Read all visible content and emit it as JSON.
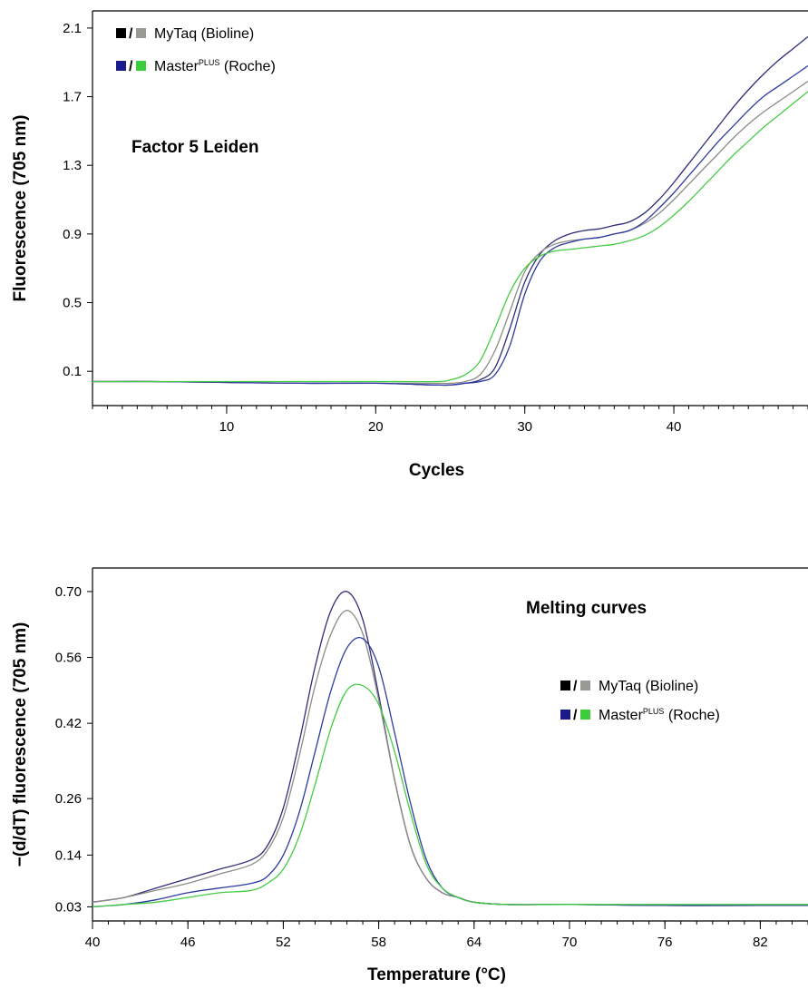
{
  "chart_data": [
    {
      "type": "line",
      "title": "Factor 5 Leiden",
      "xlabel": "Cycles",
      "ylabel": "Fluorescence (705 nm)",
      "xlim": [
        1,
        49
      ],
      "ylim": [
        -0.1,
        2.2
      ],
      "xticks": [
        10,
        20,
        30,
        40
      ],
      "yticks": [
        0.1,
        0.5,
        0.9,
        1.3,
        1.7,
        2.1
      ],
      "legend": [
        {
          "sym_a_color": "#000000",
          "sym_b_color": "#9a9a94",
          "label": "MyTaq (Bioline)",
          "sup": ""
        },
        {
          "sym_a_color": "#1a1a8a",
          "sym_b_color": "#3ccc3c",
          "label": "Master",
          "sup": "PLUS",
          "suffix": " (Roche)"
        }
      ],
      "legend_placement": "top-left",
      "series": [
        {
          "color": "#2e2e78",
          "x": [
            1,
            5,
            10,
            15,
            20,
            24,
            25,
            26,
            27,
            28,
            29,
            30,
            31,
            32,
            33,
            34,
            35,
            36,
            37,
            38,
            39,
            40,
            41,
            42,
            43,
            44,
            45,
            46,
            47,
            48,
            49
          ],
          "y": [
            0.04,
            0.04,
            0.035,
            0.03,
            0.03,
            0.02,
            0.02,
            0.03,
            0.05,
            0.12,
            0.35,
            0.62,
            0.78,
            0.86,
            0.9,
            0.92,
            0.93,
            0.95,
            0.97,
            1.02,
            1.1,
            1.2,
            1.31,
            1.42,
            1.53,
            1.64,
            1.74,
            1.83,
            1.91,
            1.98,
            2.05
          ]
        },
        {
          "color": "#8c8c86",
          "x": [
            1,
            5,
            10,
            15,
            20,
            24,
            25,
            26,
            27,
            28,
            29,
            30,
            31,
            32,
            33,
            34,
            35,
            36,
            37,
            38,
            39,
            40,
            41,
            42,
            43,
            44,
            45,
            46,
            47,
            48,
            49
          ],
          "y": [
            0.04,
            0.04,
            0.035,
            0.03,
            0.03,
            0.03,
            0.03,
            0.04,
            0.08,
            0.22,
            0.45,
            0.68,
            0.79,
            0.84,
            0.86,
            0.87,
            0.88,
            0.9,
            0.92,
            0.96,
            1.02,
            1.1,
            1.19,
            1.28,
            1.37,
            1.46,
            1.54,
            1.61,
            1.67,
            1.73,
            1.79
          ]
        },
        {
          "color": "#2e3aa0",
          "x": [
            1,
            5,
            10,
            15,
            20,
            24,
            25,
            26,
            27,
            28,
            29,
            30,
            31,
            32,
            33,
            34,
            35,
            36,
            37,
            38,
            39,
            40,
            41,
            42,
            43,
            44,
            45,
            46,
            47,
            48,
            49
          ],
          "y": [
            0.04,
            0.04,
            0.035,
            0.03,
            0.03,
            0.02,
            0.02,
            0.03,
            0.04,
            0.08,
            0.25,
            0.55,
            0.74,
            0.82,
            0.85,
            0.87,
            0.88,
            0.9,
            0.92,
            0.97,
            1.05,
            1.14,
            1.24,
            1.34,
            1.44,
            1.53,
            1.62,
            1.7,
            1.76,
            1.82,
            1.88
          ]
        },
        {
          "color": "#44cc44",
          "x": [
            1,
            5,
            10,
            15,
            20,
            24,
            25,
            26,
            27,
            28,
            29,
            30,
            31,
            32,
            33,
            34,
            35,
            36,
            37,
            38,
            39,
            40,
            41,
            42,
            43,
            44,
            45,
            46,
            47,
            48,
            49
          ],
          "y": [
            0.04,
            0.04,
            0.04,
            0.04,
            0.04,
            0.04,
            0.05,
            0.08,
            0.16,
            0.35,
            0.56,
            0.7,
            0.77,
            0.8,
            0.81,
            0.82,
            0.83,
            0.84,
            0.86,
            0.89,
            0.94,
            1.01,
            1.09,
            1.18,
            1.27,
            1.36,
            1.44,
            1.52,
            1.59,
            1.66,
            1.73
          ]
        }
      ]
    },
    {
      "type": "line",
      "title": "Melting curves",
      "xlabel": "Temperature (°C)",
      "ylabel": "−(d/dT) fluorescence (705 nm)",
      "xlim": [
        40,
        85
      ],
      "ylim": [
        0.0,
        0.75
      ],
      "xticks": [
        40,
        46,
        52,
        58,
        64,
        70,
        76,
        82
      ],
      "yticks": [
        0.03,
        0.14,
        0.26,
        0.42,
        0.56,
        0.7
      ],
      "legend": [
        {
          "sym_a_color": "#000000",
          "sym_b_color": "#9a9a94",
          "label": "MyTaq (Bioline)",
          "sup": ""
        },
        {
          "sym_a_color": "#1a1a8a",
          "sym_b_color": "#3ccc3c",
          "label": "Master",
          "sup": "PLUS",
          "suffix": " (Roche)"
        }
      ],
      "legend_placement": "right",
      "series": [
        {
          "color": "#2e2e78",
          "x": [
            40,
            42,
            44,
            46,
            48,
            50,
            51,
            52,
            53,
            54,
            55,
            56,
            57,
            58,
            59,
            60,
            61,
            62,
            63,
            64,
            66,
            70,
            76,
            82,
            85
          ],
          "y": [
            0.04,
            0.05,
            0.07,
            0.09,
            0.11,
            0.13,
            0.16,
            0.24,
            0.38,
            0.54,
            0.66,
            0.7,
            0.64,
            0.48,
            0.3,
            0.16,
            0.09,
            0.06,
            0.05,
            0.04,
            0.035,
            0.035,
            0.033,
            0.033,
            0.033
          ]
        },
        {
          "color": "#8c8c86",
          "x": [
            40,
            42,
            44,
            46,
            48,
            50,
            51,
            52,
            53,
            54,
            55,
            56,
            57,
            58,
            59,
            60,
            61,
            62,
            63,
            64,
            66,
            70,
            76,
            82,
            85
          ],
          "y": [
            0.04,
            0.05,
            0.065,
            0.08,
            0.1,
            0.12,
            0.15,
            0.22,
            0.35,
            0.5,
            0.61,
            0.66,
            0.61,
            0.47,
            0.3,
            0.16,
            0.09,
            0.06,
            0.05,
            0.04,
            0.035,
            0.035,
            0.033,
            0.033,
            0.033
          ]
        },
        {
          "color": "#2e3aa0",
          "x": [
            40,
            42,
            44,
            46,
            48,
            50,
            51,
            52,
            53,
            54,
            55,
            56,
            57,
            58,
            59,
            60,
            61,
            62,
            63,
            64,
            66,
            70,
            76,
            82,
            85
          ],
          "y": [
            0.03,
            0.035,
            0.045,
            0.06,
            0.07,
            0.08,
            0.095,
            0.14,
            0.23,
            0.36,
            0.49,
            0.58,
            0.6,
            0.54,
            0.4,
            0.25,
            0.13,
            0.07,
            0.05,
            0.04,
            0.035,
            0.035,
            0.033,
            0.033,
            0.033
          ]
        },
        {
          "color": "#44cc44",
          "x": [
            40,
            42,
            44,
            46,
            48,
            50,
            51,
            52,
            53,
            54,
            55,
            56,
            57,
            58,
            59,
            60,
            61,
            62,
            63,
            64,
            66,
            70,
            76,
            82,
            85
          ],
          "y": [
            0.03,
            0.035,
            0.04,
            0.05,
            0.06,
            0.065,
            0.08,
            0.11,
            0.18,
            0.29,
            0.41,
            0.49,
            0.5,
            0.46,
            0.36,
            0.23,
            0.12,
            0.07,
            0.05,
            0.04,
            0.035,
            0.035,
            0.035,
            0.035,
            0.035
          ]
        }
      ]
    }
  ]
}
